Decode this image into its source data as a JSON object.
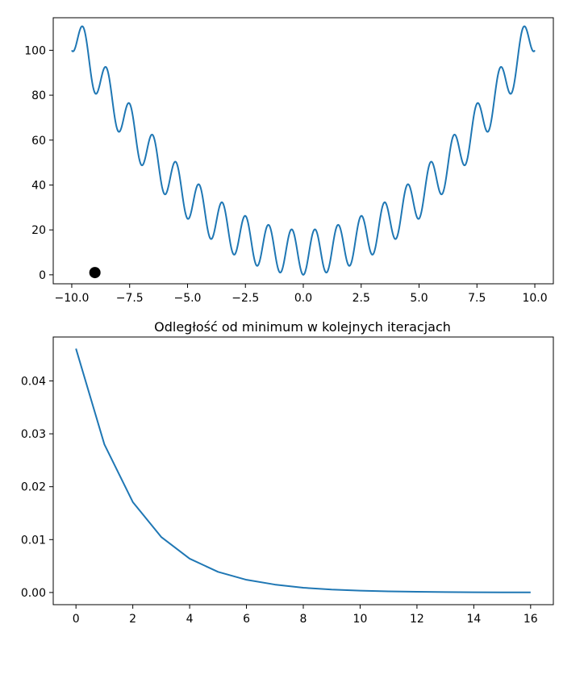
{
  "chart_data": [
    {
      "type": "line",
      "title": "",
      "xlabel": "",
      "ylabel": "",
      "xlim": [
        -10.8,
        10.8
      ],
      "ylim": [
        -4,
        114.5
      ],
      "xticks": [
        -10.0,
        -7.5,
        -5.0,
        -2.5,
        0.0,
        2.5,
        5.0,
        7.5,
        10.0
      ],
      "xtick_labels": [
        "−10.0",
        "−7.5",
        "−5.0",
        "−2.5",
        "0.0",
        "2.5",
        "5.0",
        "7.5",
        "10.0"
      ],
      "yticks": [
        0,
        20,
        40,
        60,
        80,
        100
      ],
      "ytick_labels": [
        "0",
        "20",
        "40",
        "60",
        "80",
        "100"
      ],
      "grid": false,
      "series": [
        {
          "color": "#1f77b4",
          "function": "x^2 + 10 - 10*cos(2*pi*x)",
          "x_range": [
            -10,
            10
          ]
        }
      ],
      "markers": [
        {
          "x": -9.0,
          "y": 1.0,
          "color": "#000000"
        }
      ]
    },
    {
      "type": "line",
      "title": "Odległość od minimum w kolejnych iteracjach",
      "xlabel": "",
      "ylabel": "",
      "xlim": [
        -0.8,
        16.8
      ],
      "ylim": [
        -0.0023,
        0.0483
      ],
      "xticks": [
        0,
        2,
        4,
        6,
        8,
        10,
        12,
        14,
        16
      ],
      "xtick_labels": [
        "0",
        "2",
        "4",
        "6",
        "8",
        "10",
        "12",
        "14",
        "16"
      ],
      "yticks": [
        0.0,
        0.01,
        0.02,
        0.03,
        0.04
      ],
      "ytick_labels": [
        "0.00",
        "0.01",
        "0.02",
        "0.03",
        "0.04"
      ],
      "grid": false,
      "series": [
        {
          "color": "#1f77b4",
          "x": [
            0,
            1,
            2,
            3,
            4,
            5,
            6,
            7,
            8,
            9,
            10,
            11,
            12,
            13,
            14,
            15,
            16
          ],
          "y": [
            0.0461,
            0.028,
            0.0171,
            0.0105,
            0.0064,
            0.0039,
            0.0024,
            0.0015,
            0.0009,
            0.00055,
            0.00035,
            0.00022,
            0.00013,
            8e-05,
            5e-05,
            3e-05,
            2e-05
          ]
        }
      ]
    }
  ]
}
